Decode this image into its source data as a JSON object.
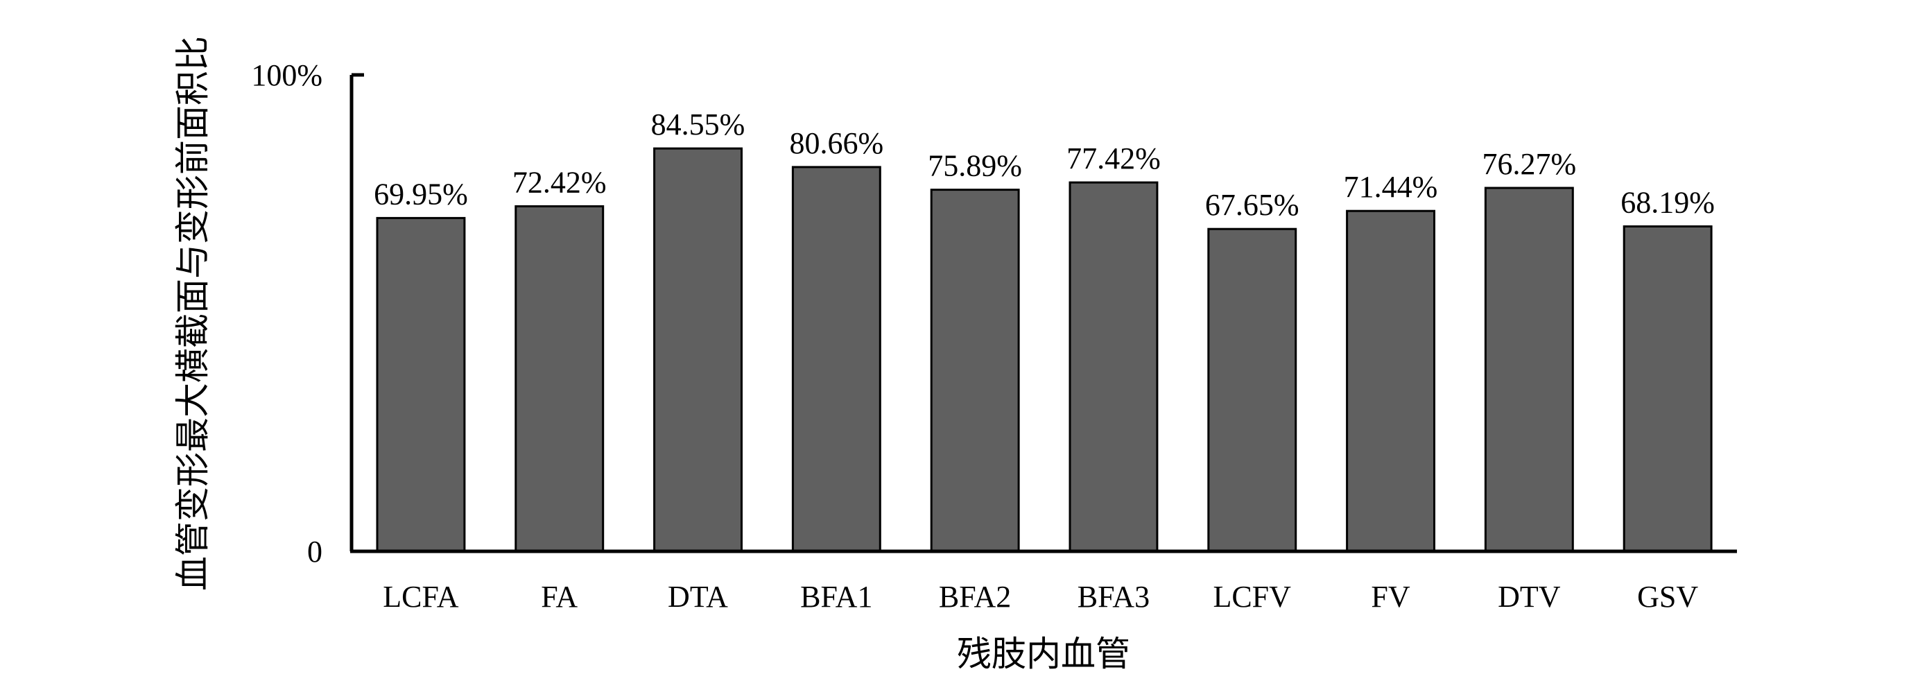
{
  "chart_data": {
    "type": "bar",
    "title": "",
    "xlabel": "残肢内血管",
    "ylabel": "血管变形最大横截面与变形前面积比",
    "categories": [
      "LCFA",
      "FA",
      "DTA",
      "BFA1",
      "BFA2",
      "BFA3",
      "LCFV",
      "FV",
      "DTV",
      "GSV"
    ],
    "values": [
      69.95,
      72.42,
      84.55,
      80.66,
      75.89,
      77.42,
      67.65,
      71.44,
      76.27,
      68.19
    ],
    "value_labels": [
      "69.95%",
      "72.42%",
      "84.55%",
      "80.66%",
      "75.89%",
      "77.42%",
      "67.65%",
      "71.44%",
      "76.27%",
      "68.19%"
    ],
    "ylim": [
      0,
      100
    ],
    "y_ticks": [
      {
        "value": 0,
        "label": "0"
      },
      {
        "value": 100,
        "label": "100%"
      }
    ],
    "grid": false,
    "legend": "none",
    "bar_color": "#606060"
  }
}
